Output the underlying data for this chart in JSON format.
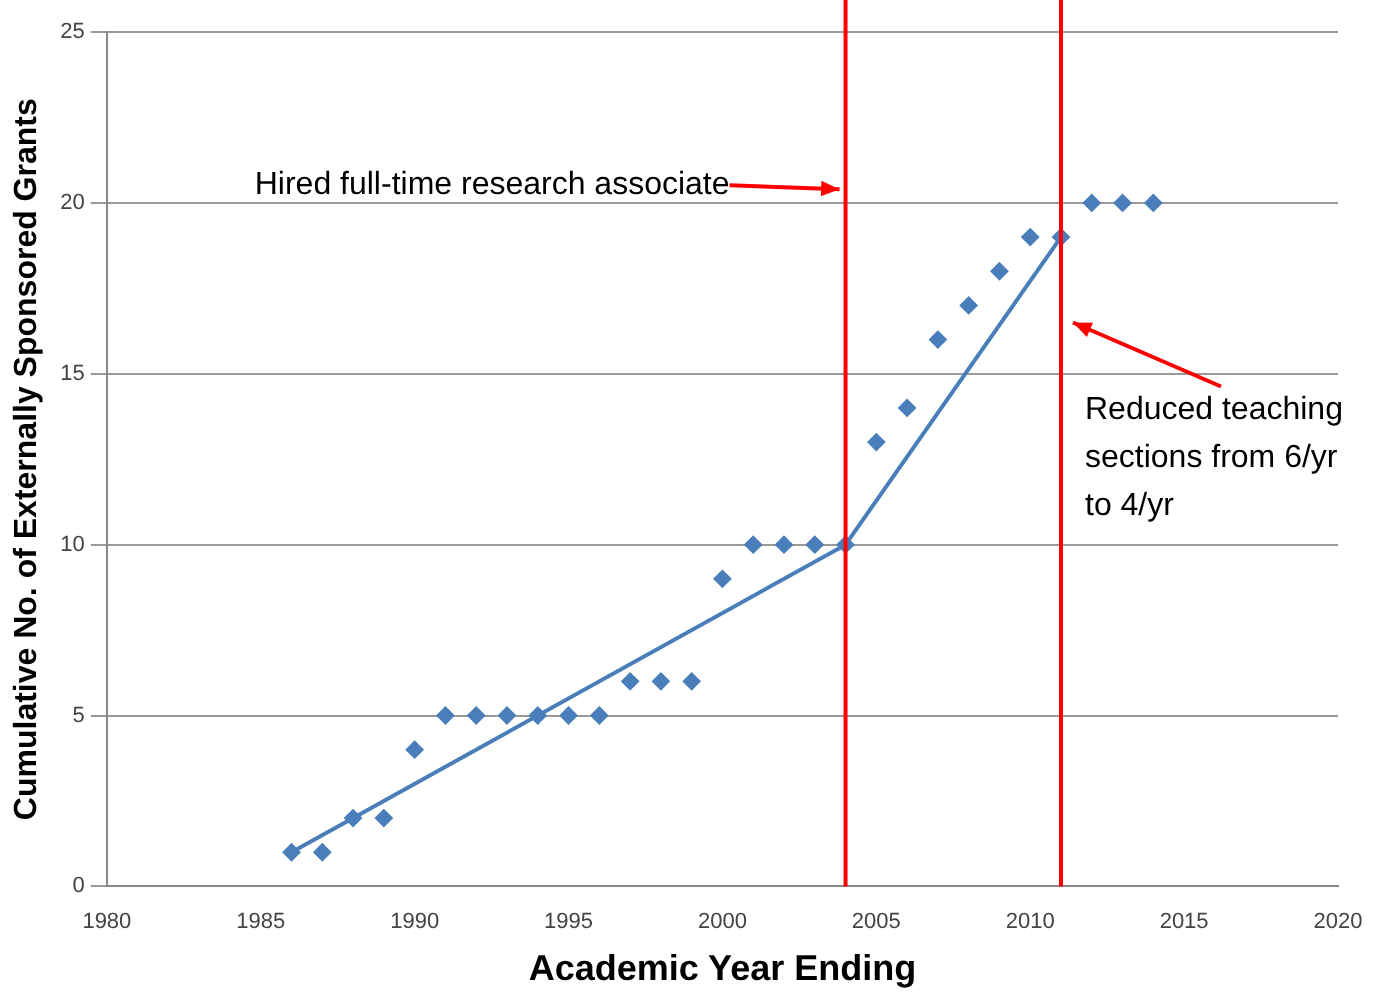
{
  "chart_data": {
    "type": "scatter",
    "xlabel": "Academic Year Ending",
    "ylabel": "Cumulative No. of Externally Sponsored Grants",
    "xlim": [
      1980,
      2020
    ],
    "xticks": [
      1980,
      1985,
      1990,
      1995,
      2000,
      2005,
      2010,
      2015,
      2020
    ],
    "ylim": [
      0,
      25
    ],
    "yticks": [
      0,
      5,
      10,
      15,
      20,
      25
    ],
    "grid": "y",
    "legend": false,
    "x": [
      1986,
      1987,
      1988,
      1989,
      1990,
      1991,
      1992,
      1993,
      1994,
      1995,
      1996,
      1997,
      1998,
      1999,
      2000,
      2001,
      2002,
      2003,
      2004,
      2005,
      2006,
      2007,
      2008,
      2009,
      2010,
      2011,
      2012,
      2013,
      2014
    ],
    "series": [
      {
        "color": "#4a7ebb",
        "marker": "diamond",
        "values": [
          1,
          1,
          2,
          2,
          4,
          5,
          5,
          5,
          5,
          5,
          5,
          6,
          6,
          6,
          9,
          10,
          10,
          10,
          10,
          13,
          14,
          16,
          17,
          18,
          19,
          19,
          20,
          20,
          20
        ]
      },
      {
        "type": "line",
        "color": "#4a7ebb",
        "marker": "none",
        "x": [
          1986,
          2004,
          2011
        ],
        "values": [
          1,
          10,
          19
        ]
      }
    ],
    "ref_lines": [
      {
        "axis": "x",
        "value": 2004,
        "color": "#ff0000"
      },
      {
        "axis": "x",
        "value": 2011,
        "color": "#ff0000"
      }
    ],
    "annotations": [
      {
        "text": "Hired full-time research associate",
        "x": 2004,
        "y": 20.4
      },
      {
        "text": "Reduced teaching sections from 6/yr to 4/yr",
        "x": 2011,
        "y": 16.5
      }
    ]
  }
}
